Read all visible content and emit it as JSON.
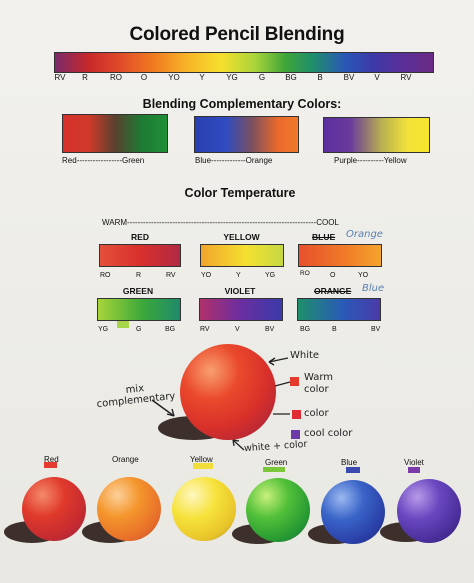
{
  "title": "Colored Pencil Blending",
  "spectrum": {
    "labels": [
      "RV",
      "R",
      "RO",
      "O",
      "YO",
      "Y",
      "YG",
      "G",
      "BG",
      "B",
      "BV",
      "V",
      "RV"
    ]
  },
  "complementary": {
    "heading": "Blending Complementary Colors:",
    "pairs": [
      {
        "left": "Red",
        "right": "Green"
      },
      {
        "left": "Blue",
        "right": "Orange"
      },
      {
        "left": "Purple",
        "right": "Yellow"
      }
    ]
  },
  "temperature": {
    "heading": "Color Temperature",
    "warm": "WARM",
    "cool": "COOL",
    "boxes": [
      {
        "label": "RED",
        "ticks": [
          "RO",
          "R",
          "RV"
        ]
      },
      {
        "label": "YELLOW",
        "ticks": [
          "YO",
          "Y",
          "YG"
        ]
      },
      {
        "label": "BLUE",
        "correction": "Orange",
        "ticks": [
          "RO",
          "O",
          "YO"
        ]
      },
      {
        "label": "GREEN",
        "ticks": [
          "YG",
          "G",
          "BG"
        ]
      },
      {
        "label": "VIOLET",
        "ticks": [
          "RV",
          "V",
          "BV"
        ]
      },
      {
        "label": "ORANGE",
        "correction": "Blue",
        "ticks": [
          "BG",
          "B",
          "BV"
        ]
      }
    ]
  },
  "sphere_notes": {
    "left": [
      "mix",
      "complementary"
    ],
    "white": "White",
    "warm": [
      "Warm",
      "color"
    ],
    "color": "color",
    "cool": "cool color",
    "bottom": [
      "white + color"
    ]
  },
  "balls": [
    "Red",
    "Orange",
    "Yellow",
    "Green",
    "Blue",
    "Violet"
  ]
}
